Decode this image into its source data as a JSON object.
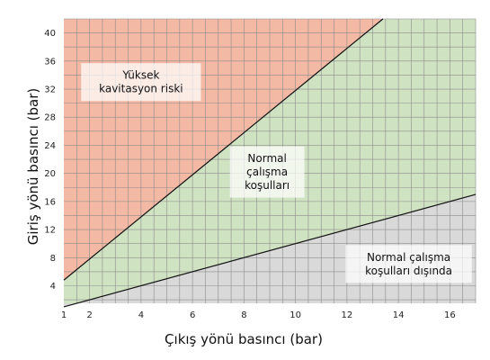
{
  "chart_data": {
    "type": "area",
    "xlabel": "Çıkış yönü basıncı (bar)",
    "ylabel": "Giriş yönü basıncı (bar)",
    "xlim": [
      1,
      17
    ],
    "ylim": [
      1.5,
      42
    ],
    "x_ticks": [
      1,
      2,
      4,
      6,
      8,
      10,
      12,
      14,
      16
    ],
    "y_ticks": [
      4,
      8,
      12,
      16,
      20,
      24,
      28,
      32,
      36,
      40
    ],
    "grid": true,
    "lines": [
      {
        "points": [
          [
            1,
            4.8
          ],
          [
            13.4,
            42
          ]
        ]
      },
      {
        "points": [
          [
            1,
            1
          ],
          [
            17,
            17
          ]
        ]
      }
    ],
    "regions": [
      {
        "label_lines": [
          "Yüksek",
          "kavitasyon riski"
        ],
        "color": "#f3b9a4",
        "label_at": [
          4,
          33
        ]
      },
      {
        "label_lines": [
          "Normal",
          "çalışma",
          "koşulları"
        ],
        "color": "#cfe2c2",
        "label_at": [
          8.9,
          20.2
        ]
      },
      {
        "label_lines": [
          "Normal çalışma",
          "koşulları dışında"
        ],
        "color": "#d9d9d9",
        "label_at": [
          14.4,
          7.1
        ]
      }
    ],
    "line_color": "#111111",
    "grid_color": "#8c8c8c",
    "label_box_color": "#ffffff"
  }
}
